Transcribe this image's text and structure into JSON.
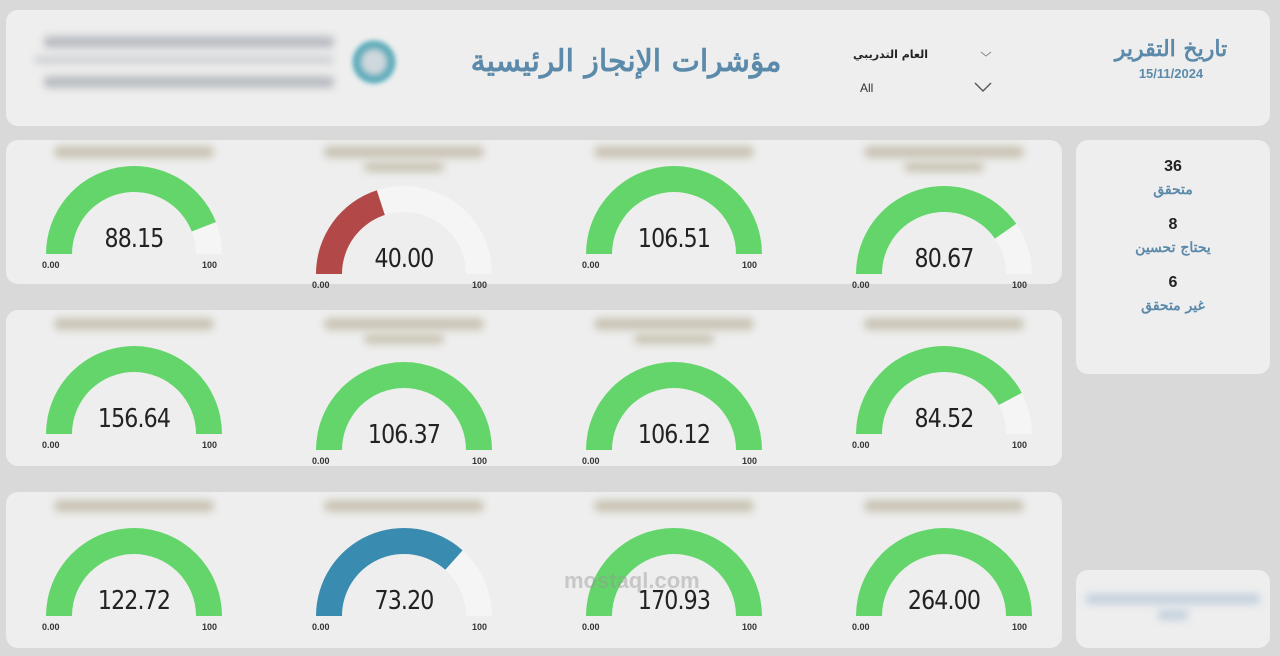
{
  "header": {
    "title": "مؤشرات الإنجاز الرئيسية",
    "report_date_label": "تاريخ التقرير",
    "report_date_value": "15/11/2024",
    "filter": {
      "label": "العام التدريبي",
      "selected": "All"
    }
  },
  "colors": {
    "good": "#63d56a",
    "bad": "#b34848",
    "mid": "#3a8bb0",
    "track": "#f5f5f5",
    "accent": "#5b8aaa"
  },
  "gauges": [
    {
      "value": "88.15",
      "num": 88.15,
      "min": "0.00",
      "max": "100",
      "color": "good"
    },
    {
      "value": "40.00",
      "num": 40.0,
      "min": "0.00",
      "max": "100",
      "color": "bad"
    },
    {
      "value": "106.51",
      "num": 106.51,
      "min": "0.00",
      "max": "100",
      "color": "good"
    },
    {
      "value": "80.67",
      "num": 80.67,
      "min": "0.00",
      "max": "100",
      "color": "good"
    },
    {
      "value": "156.64",
      "num": 156.64,
      "min": "0.00",
      "max": "100",
      "color": "good"
    },
    {
      "value": "106.37",
      "num": 106.37,
      "min": "0.00",
      "max": "100",
      "color": "good"
    },
    {
      "value": "106.12",
      "num": 106.12,
      "min": "0.00",
      "max": "100",
      "color": "good"
    },
    {
      "value": "84.52",
      "num": 84.52,
      "min": "0.00",
      "max": "100",
      "color": "good"
    },
    {
      "value": "122.72",
      "num": 122.72,
      "min": "0.00",
      "max": "100",
      "color": "good"
    },
    {
      "value": "73.20",
      "num": 73.2,
      "min": "0.00",
      "max": "100",
      "color": "mid"
    },
    {
      "value": "170.93",
      "num": 170.93,
      "min": "0.00",
      "max": "100",
      "color": "good"
    },
    {
      "value": "264.00",
      "num": 264.0,
      "min": "0.00",
      "max": "100",
      "color": "good"
    }
  ],
  "summary": [
    {
      "count": "36",
      "label": "متحقق"
    },
    {
      "count": "8",
      "label": "يحتاج تحسين"
    },
    {
      "count": "6",
      "label": "غير متحقق"
    }
  ],
  "watermark": "mostaql.com"
}
